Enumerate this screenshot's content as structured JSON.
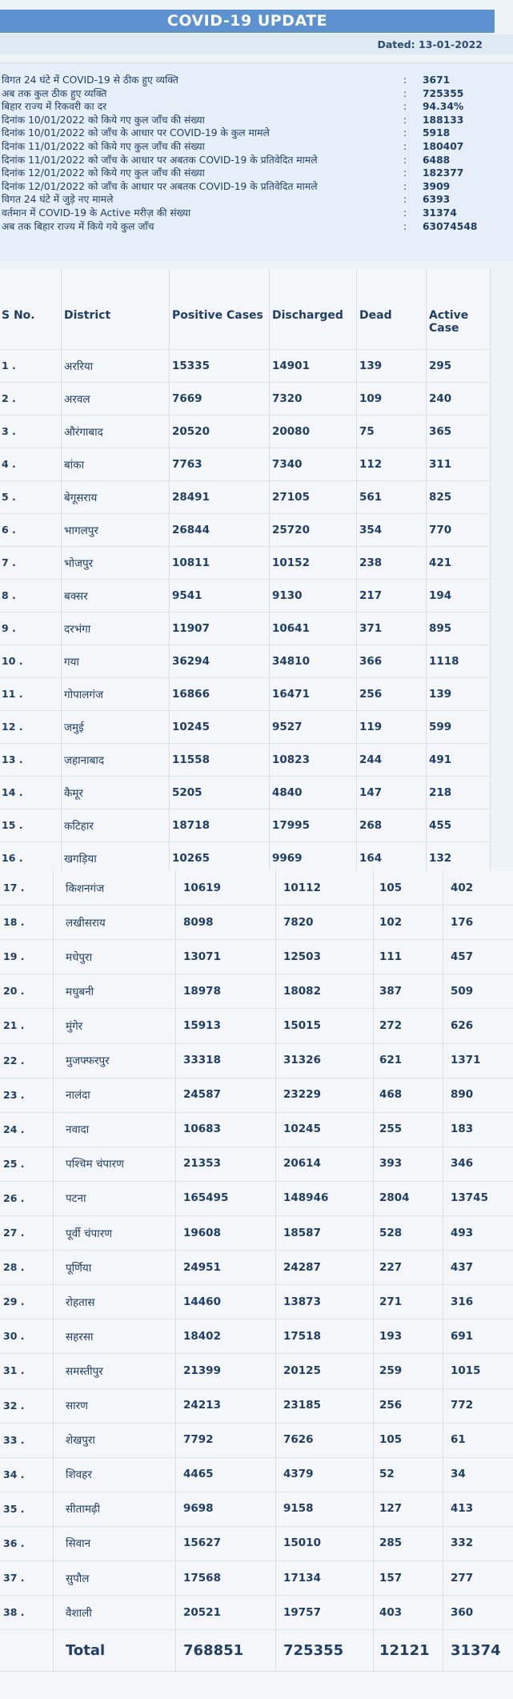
{
  "header": {
    "title": "COVID-19 UPDATE",
    "dated": "Dated:  13-01-2022"
  },
  "summary": [
    {
      "label": "विगत 24 घंटे में COVID-19 से ठीक हुए व्यक्ति",
      "value": "3671"
    },
    {
      "label": "अब तक कुल ठीक हुए व्यक्ति",
      "value": "725355"
    },
    {
      "label": "बिहार राज्य में रिकवरी का दर",
      "value": "94.34%"
    },
    {
      "label": "दिनांक 10/01/2022 को किये गए कुल जाँच की संख्या",
      "value": "188133"
    },
    {
      "label": "दिनांक 10/01/2022 को जाँच के आधार पर COVID-19 के कुल मामले",
      "value": "5918"
    },
    {
      "label": "दिनांक 11/01/2022 को किये गए कुल जाँच की संख्या",
      "value": "180407"
    },
    {
      "label": "दिनांक 11/01/2022 को जाँच के आधार पर अबतक COVID-19 के प्रतिवेदित मामले",
      "value": "6488"
    },
    {
      "label": "दिनांक 12/01/2022 को किये गए कुल जाँच की संख्या",
      "value": "182377"
    },
    {
      "label": "दिनांक 12/01/2022 को जाँच के आधार पर अबतक COVID-19 के प्रतिवेदित मामले",
      "value": "3909"
    },
    {
      "label": "विगत 24 घंटे में जुड़े नए मामले",
      "value": "6393"
    },
    {
      "label": "वर्तमान में COVID-19 के Active मरीज़ की संख्या",
      "value": "31374"
    },
    {
      "label": "अब तक बिहार राज्य में किये गये कुल जाँच",
      "value": "63074548"
    }
  ],
  "table": {
    "headers": {
      "sno": "S No.",
      "district": "District",
      "positive": "Positive Cases",
      "discharged": "Discharged",
      "dead": "Dead",
      "active": "Active Case"
    },
    "rows": [
      {
        "sno": "1 .",
        "district": "अररिया",
        "positive": "15335",
        "discharged": "14901",
        "dead": "139",
        "active": "295"
      },
      {
        "sno": "2 .",
        "district": "अरवल",
        "positive": "7669",
        "discharged": "7320",
        "dead": "109",
        "active": "240"
      },
      {
        "sno": "3 .",
        "district": "औरंगाबाद",
        "positive": "20520",
        "discharged": "20080",
        "dead": "75",
        "active": "365"
      },
      {
        "sno": "4 .",
        "district": "बांका",
        "positive": "7763",
        "discharged": "7340",
        "dead": "112",
        "active": "311"
      },
      {
        "sno": "5 .",
        "district": "बेगूसराय",
        "positive": "28491",
        "discharged": "27105",
        "dead": "561",
        "active": "825"
      },
      {
        "sno": "6 .",
        "district": "भागलपुर",
        "positive": "26844",
        "discharged": "25720",
        "dead": "354",
        "active": "770"
      },
      {
        "sno": "7 .",
        "district": "भोजपुर",
        "positive": "10811",
        "discharged": "10152",
        "dead": "238",
        "active": "421"
      },
      {
        "sno": "8 .",
        "district": "बक्सर",
        "positive": "9541",
        "discharged": "9130",
        "dead": "217",
        "active": "194"
      },
      {
        "sno": "9 .",
        "district": "दरभंगा",
        "positive": "11907",
        "discharged": "10641",
        "dead": "371",
        "active": "895"
      },
      {
        "sno": "10 .",
        "district": "गया",
        "positive": "36294",
        "discharged": "34810",
        "dead": "366",
        "active": "1118"
      },
      {
        "sno": "11 .",
        "district": "गोपालगंज",
        "positive": "16866",
        "discharged": "16471",
        "dead": "256",
        "active": "139"
      },
      {
        "sno": "12 .",
        "district": "जमुई",
        "positive": "10245",
        "discharged": "9527",
        "dead": "119",
        "active": "599"
      },
      {
        "sno": "13 .",
        "district": "जहानाबाद",
        "positive": "11558",
        "discharged": "10823",
        "dead": "244",
        "active": "491"
      },
      {
        "sno": "14 .",
        "district": "कैमूर",
        "positive": "5205",
        "discharged": "4840",
        "dead": "147",
        "active": "218"
      },
      {
        "sno": "15 .",
        "district": "कटिहार",
        "positive": "18718",
        "discharged": "17995",
        "dead": "268",
        "active": "455"
      },
      {
        "sno": "16 .",
        "district": "खगड़िया",
        "positive": "10265",
        "discharged": "9969",
        "dead": "164",
        "active": "132"
      },
      {
        "sno": "17 .",
        "district": "किशनगंज",
        "positive": "10619",
        "discharged": "10112",
        "dead": "105",
        "active": "402"
      },
      {
        "sno": "18 .",
        "district": "लखीसराय",
        "positive": "8098",
        "discharged": "7820",
        "dead": "102",
        "active": "176"
      },
      {
        "sno": "19 .",
        "district": "मधेपुरा",
        "positive": "13071",
        "discharged": "12503",
        "dead": "111",
        "active": "457"
      },
      {
        "sno": "20 .",
        "district": "मधुबनी",
        "positive": "18978",
        "discharged": "18082",
        "dead": "387",
        "active": "509"
      },
      {
        "sno": "21 .",
        "district": "मुंगेर",
        "positive": "15913",
        "discharged": "15015",
        "dead": "272",
        "active": "626"
      },
      {
        "sno": "22 .",
        "district": "मुजफ्फरपुर",
        "positive": "33318",
        "discharged": "31326",
        "dead": "621",
        "active": "1371"
      },
      {
        "sno": "23 .",
        "district": "नालंदा",
        "positive": "24587",
        "discharged": "23229",
        "dead": "468",
        "active": "890"
      },
      {
        "sno": "24 .",
        "district": "नवादा",
        "positive": "10683",
        "discharged": "10245",
        "dead": "255",
        "active": "183"
      },
      {
        "sno": "25 .",
        "district": "पश्चिम चंपारण",
        "positive": "21353",
        "discharged": "20614",
        "dead": "393",
        "active": "346"
      },
      {
        "sno": "26 .",
        "district": "पटना",
        "positive": "165495",
        "discharged": "148946",
        "dead": "2804",
        "active": "13745"
      },
      {
        "sno": "27 .",
        "district": "पूर्वी चंपारण",
        "positive": "19608",
        "discharged": "18587",
        "dead": "528",
        "active": "493"
      },
      {
        "sno": "28 .",
        "district": "पूर्णिया",
        "positive": "24951",
        "discharged": "24287",
        "dead": "227",
        "active": "437"
      },
      {
        "sno": "29 .",
        "district": "रोहतास",
        "positive": "14460",
        "discharged": "13873",
        "dead": "271",
        "active": "316"
      },
      {
        "sno": "30 .",
        "district": "सहरसा",
        "positive": "18402",
        "discharged": "17518",
        "dead": "193",
        "active": "691"
      },
      {
        "sno": "31 .",
        "district": "समस्तीपुर",
        "positive": "21399",
        "discharged": "20125",
        "dead": "259",
        "active": "1015"
      },
      {
        "sno": "32 .",
        "district": "सारण",
        "positive": "24213",
        "discharged": "23185",
        "dead": "256",
        "active": "772"
      },
      {
        "sno": "33 .",
        "district": "शेखपुरा",
        "positive": "7792",
        "discharged": "7626",
        "dead": "105",
        "active": "61"
      },
      {
        "sno": "34 .",
        "district": "शिवहर",
        "positive": "4465",
        "discharged": "4379",
        "dead": "52",
        "active": "34"
      },
      {
        "sno": "35 .",
        "district": "सीतामढ़ी",
        "positive": "9698",
        "discharged": "9158",
        "dead": "127",
        "active": "413"
      },
      {
        "sno": "36 .",
        "district": "सिवान",
        "positive": "15627",
        "discharged": "15010",
        "dead": "285",
        "active": "332"
      },
      {
        "sno": "37 .",
        "district": "सुपौल",
        "positive": "17568",
        "discharged": "17134",
        "dead": "157",
        "active": "277"
      },
      {
        "sno": "38 .",
        "district": "वैशाली",
        "positive": "20521",
        "discharged": "19757",
        "dead": "403",
        "active": "360"
      }
    ],
    "total": {
      "label": "Total",
      "positive": "768851",
      "discharged": "725355",
      "dead": "12121",
      "active": "31374"
    }
  }
}
